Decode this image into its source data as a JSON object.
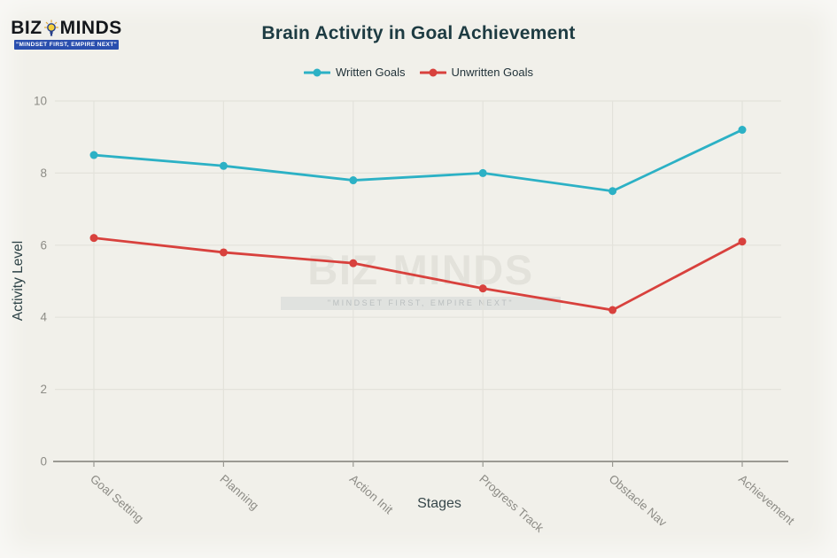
{
  "logo": {
    "part1": "BIZ",
    "part2": "MINDS",
    "tagline": "\"MINDSET FIRST, EMPIRE NEXT\"",
    "banner_color": "#2a4fae",
    "bulb_gold": "#e2a93b",
    "bulb_navy": "#27408b"
  },
  "chart_data": {
    "type": "line",
    "title": "Brain Activity in Goal Achievement",
    "xlabel": "Stages",
    "ylabel": "Activity Level",
    "categories": [
      "Goal Setting",
      "Planning",
      "Action Init",
      "Progress Track",
      "Obstacle Nav",
      "Achievement"
    ],
    "series": [
      {
        "name": "Written Goals",
        "color": "#2cb1c5",
        "values": [
          8.5,
          8.2,
          7.8,
          8.0,
          7.5,
          9.2
        ]
      },
      {
        "name": "Unwritten Goals",
        "color": "#d8413d",
        "values": [
          6.2,
          5.8,
          5.5,
          4.8,
          4.2,
          6.1
        ]
      }
    ],
    "ylim": [
      0,
      10
    ],
    "yticks": [
      0,
      2,
      4,
      6,
      8,
      10
    ],
    "grid": true,
    "legend_position": "top-center"
  },
  "colors": {
    "background": "#f1f0ea",
    "grid": "#e3e2db",
    "axis": "#9b9a93",
    "tick_text": "#8d8c86",
    "title_text": "#1d3b42"
  }
}
